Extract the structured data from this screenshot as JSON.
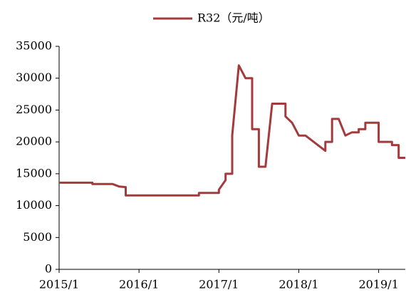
{
  "chart_data": {
    "type": "line",
    "x": [
      "2015/1",
      "2015/6",
      "2015/6",
      "2015/9",
      "2015/10",
      "2015/11",
      "2015/11",
      "2016/10",
      "2016/10",
      "2017/1",
      "2017/1",
      "2017/2",
      "2017/2",
      "2017/3",
      "2017/3",
      "2017/4",
      "2017/5",
      "2017/6",
      "2017/6",
      "2017/7",
      "2017/7",
      "2017/8",
      "2017/9",
      "2017/11",
      "2017/11",
      "2017/12",
      "2018/1",
      "2018/2",
      "2018/5",
      "2018/5",
      "2018/6",
      "2018/6",
      "2018/7",
      "2018/8",
      "2018/9",
      "2018/10",
      "2018/10",
      "2018/11",
      "2018/11",
      "2019/1",
      "2019/1",
      "2019/3",
      "2019/3",
      "2019/4",
      "2019/4",
      "2019/5"
    ],
    "series": [
      {
        "name": "R32（元/吨）",
        "color": "#a33a3c",
        "values": [
          13600,
          13600,
          13400,
          13400,
          13000,
          12900,
          11600,
          11600,
          12000,
          12000,
          12500,
          14000,
          15000,
          15000,
          21000,
          32000,
          30000,
          30000,
          22000,
          22000,
          16100,
          16100,
          26000,
          26000,
          24000,
          23000,
          21000,
          21000,
          18600,
          20000,
          20000,
          23600,
          23600,
          21000,
          21500,
          21500,
          22000,
          22000,
          23000,
          23000,
          20000,
          20000,
          19500,
          19500,
          17500,
          17500
        ]
      }
    ],
    "xlim": [
      "2015/1",
      "2019/5"
    ],
    "xticks": [
      "2015/1",
      "2016/1",
      "2017/1",
      "2018/1",
      "2019/1"
    ],
    "ylim": [
      0,
      35000
    ],
    "yticks": [
      0,
      5000,
      10000,
      15000,
      20000,
      25000,
      30000,
      35000
    ],
    "legend": "top"
  }
}
